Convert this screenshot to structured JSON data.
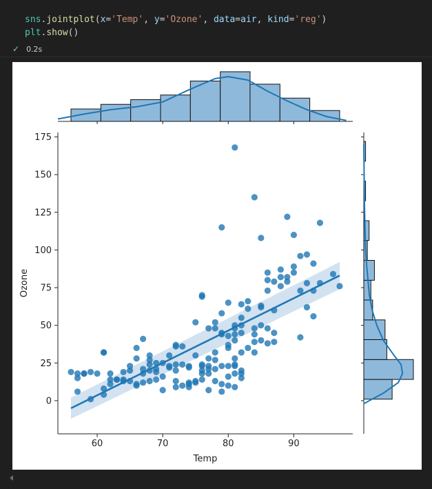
{
  "code": {
    "line1": {
      "module": "sns",
      "dot": ".",
      "fn": "jointplot",
      "open": "(",
      "x_param": "x",
      "eq": "=",
      "x_val": "'Temp'",
      "comma": ", ",
      "y_param": "y",
      "y_val": "'Ozone'",
      "data_param": "data",
      "data_val": "air",
      "kind_param": "kind",
      "kind_val": "'reg'",
      "close": ")"
    },
    "line2": {
      "module": "plt",
      "dot": ".",
      "fn": "show",
      "call": "()"
    }
  },
  "status": {
    "time": "0.2s"
  },
  "colors": {
    "point": "#1f77b4",
    "hist_fill": "#8fb9db",
    "ci_band": "#c7dbee"
  },
  "chart_data": {
    "type": "scatter",
    "xlabel": "Temp",
    "ylabel": "Ozone",
    "xlim": [
      54.0,
      99.0
    ],
    "ylim": [
      -22,
      178
    ],
    "xticks": [
      60,
      70,
      80,
      90
    ],
    "yticks": [
      0,
      25,
      50,
      75,
      100,
      125,
      150,
      175
    ],
    "regression": {
      "x_start": 56,
      "y_start": -5,
      "x_end": 97,
      "y_end": 83,
      "ci_upper_start": 2,
      "ci_lower_start": -12,
      "ci_upper_end": 92,
      "ci_lower_end": 74
    },
    "points": [
      [
        56,
        19
      ],
      [
        57,
        15
      ],
      [
        57,
        18
      ],
      [
        57,
        6
      ],
      [
        58,
        18
      ],
      [
        58,
        18
      ],
      [
        59,
        1
      ],
      [
        59,
        19
      ],
      [
        61,
        4
      ],
      [
        61,
        8
      ],
      [
        61,
        32
      ],
      [
        62,
        11
      ],
      [
        62,
        18
      ],
      [
        63,
        14
      ],
      [
        64,
        13
      ],
      [
        64,
        14
      ],
      [
        65,
        23
      ],
      [
        65,
        20
      ],
      [
        66,
        28
      ],
      [
        66,
        11
      ],
      [
        67,
        18
      ],
      [
        67,
        21
      ],
      [
        67,
        41
      ],
      [
        68,
        13
      ],
      [
        68,
        30
      ],
      [
        68,
        20
      ],
      [
        68,
        24
      ],
      [
        69,
        21
      ],
      [
        69,
        19
      ],
      [
        69,
        14
      ],
      [
        70,
        7
      ],
      [
        70,
        16
      ],
      [
        71,
        30
      ],
      [
        71,
        23
      ],
      [
        72,
        13
      ],
      [
        72,
        9
      ],
      [
        72,
        24
      ],
      [
        72,
        36
      ],
      [
        73,
        10
      ],
      [
        73,
        24
      ],
      [
        73,
        36
      ],
      [
        74,
        9
      ],
      [
        74,
        12
      ],
      [
        74,
        11
      ],
      [
        74,
        23
      ],
      [
        75,
        12
      ],
      [
        75,
        13
      ],
      [
        76,
        14
      ],
      [
        76,
        23
      ],
      [
        76,
        20
      ],
      [
        76,
        18
      ],
      [
        76,
        24
      ],
      [
        77,
        7
      ],
      [
        77,
        18
      ],
      [
        77,
        23
      ],
      [
        77,
        21
      ],
      [
        77,
        28
      ],
      [
        78,
        13
      ],
      [
        78,
        21
      ],
      [
        78,
        48
      ],
      [
        78,
        32
      ],
      [
        79,
        6
      ],
      [
        79,
        11
      ],
      [
        79,
        23
      ],
      [
        79,
        44
      ],
      [
        79,
        45
      ],
      [
        80,
        16
      ],
      [
        80,
        23
      ],
      [
        80,
        37
      ],
      [
        80,
        43
      ],
      [
        81,
        18
      ],
      [
        81,
        23
      ],
      [
        81,
        28
      ],
      [
        81,
        40
      ],
      [
        81,
        44
      ],
      [
        81,
        48
      ],
      [
        81,
        50
      ],
      [
        82,
        18
      ],
      [
        82,
        20
      ],
      [
        82,
        32
      ],
      [
        82,
        45
      ],
      [
        82,
        50
      ],
      [
        82,
        64
      ],
      [
        84,
        32
      ],
      [
        84,
        39
      ],
      [
        84,
        44
      ],
      [
        84,
        48
      ],
      [
        85,
        40
      ],
      [
        85,
        50
      ],
      [
        85,
        63
      ],
      [
        86,
        38
      ],
      [
        86,
        48
      ],
      [
        86,
        73
      ],
      [
        87,
        39
      ],
      [
        87,
        45
      ],
      [
        87,
        79
      ],
      [
        88,
        76
      ],
      [
        88,
        82
      ],
      [
        88,
        87
      ],
      [
        89,
        82
      ],
      [
        90,
        85
      ],
      [
        90,
        89
      ],
      [
        91,
        42
      ],
      [
        91,
        96
      ],
      [
        92,
        62
      ],
      [
        92,
        97
      ],
      [
        93,
        56
      ],
      [
        93,
        73
      ],
      [
        93,
        91
      ],
      [
        94,
        78
      ],
      [
        96,
        84
      ],
      [
        97,
        76
      ],
      [
        61,
        32
      ],
      [
        64,
        19
      ],
      [
        66,
        35
      ],
      [
        72,
        37
      ],
      [
        75,
        52
      ],
      [
        76,
        69
      ],
      [
        76,
        70
      ],
      [
        77,
        48
      ],
      [
        78,
        52
      ],
      [
        79,
        58
      ],
      [
        79,
        115
      ],
      [
        80,
        65
      ],
      [
        81,
        168
      ],
      [
        82,
        55
      ],
      [
        83,
        61
      ],
      [
        83,
        66
      ],
      [
        84,
        135
      ],
      [
        85,
        108
      ],
      [
        86,
        85
      ],
      [
        89,
        122
      ],
      [
        90,
        110
      ],
      [
        94,
        118
      ],
      [
        86,
        80
      ],
      [
        81,
        9
      ],
      [
        80,
        10
      ],
      [
        82,
        15
      ],
      [
        83,
        35
      ],
      [
        85,
        62
      ],
      [
        87,
        60
      ],
      [
        89,
        79
      ],
      [
        91,
        73
      ],
      [
        92,
        78
      ],
      [
        74,
        22
      ],
      [
        75,
        30
      ],
      [
        72,
        20
      ],
      [
        71,
        22
      ],
      [
        70,
        25
      ],
      [
        69,
        25
      ],
      [
        68,
        27
      ],
      [
        67,
        12
      ],
      [
        66,
        10
      ],
      [
        65,
        13
      ],
      [
        63,
        14
      ],
      [
        62,
        14
      ],
      [
        60,
        18
      ],
      [
        78,
        27
      ],
      [
        80,
        35
      ],
      [
        81,
        24
      ]
    ],
    "x_hist": {
      "bin_edges": [
        56,
        60.56,
        65.11,
        69.67,
        74.22,
        78.78,
        83.33,
        87.89,
        92.44,
        97
      ],
      "counts": [
        8,
        11,
        14,
        17,
        26,
        32,
        24,
        15,
        7
      ]
    },
    "y_hist": {
      "bin_edges": [
        1,
        14.1,
        27.3,
        40.5,
        53.6,
        66.8,
        79.9,
        93.1,
        106.3,
        119.4,
        132.6,
        145.7,
        158.9,
        172
      ],
      "counts": [
        16,
        28,
        13,
        12,
        5,
        4,
        6,
        2,
        3,
        0,
        1,
        0,
        1
      ]
    },
    "x_kde": [
      [
        54,
        0.05
      ],
      [
        58,
        0.15
      ],
      [
        62,
        0.24
      ],
      [
        66,
        0.3
      ],
      [
        70,
        0.4
      ],
      [
        74,
        0.65
      ],
      [
        78,
        0.88
      ],
      [
        80,
        0.92
      ],
      [
        83,
        0.85
      ],
      [
        86,
        0.62
      ],
      [
        89,
        0.42
      ],
      [
        92,
        0.24
      ],
      [
        95,
        0.1
      ],
      [
        98,
        0.02
      ]
    ],
    "y_kde": [
      [
        -2,
        0.0
      ],
      [
        5,
        0.42
      ],
      [
        12,
        0.74
      ],
      [
        18,
        0.83
      ],
      [
        24,
        0.8
      ],
      [
        30,
        0.65
      ],
      [
        40,
        0.42
      ],
      [
        50,
        0.28
      ],
      [
        60,
        0.18
      ],
      [
        70,
        0.12
      ],
      [
        80,
        0.09
      ],
      [
        90,
        0.06
      ],
      [
        100,
        0.04
      ],
      [
        115,
        0.025
      ],
      [
        130,
        0.015
      ],
      [
        150,
        0.008
      ],
      [
        170,
        0.0
      ]
    ]
  }
}
